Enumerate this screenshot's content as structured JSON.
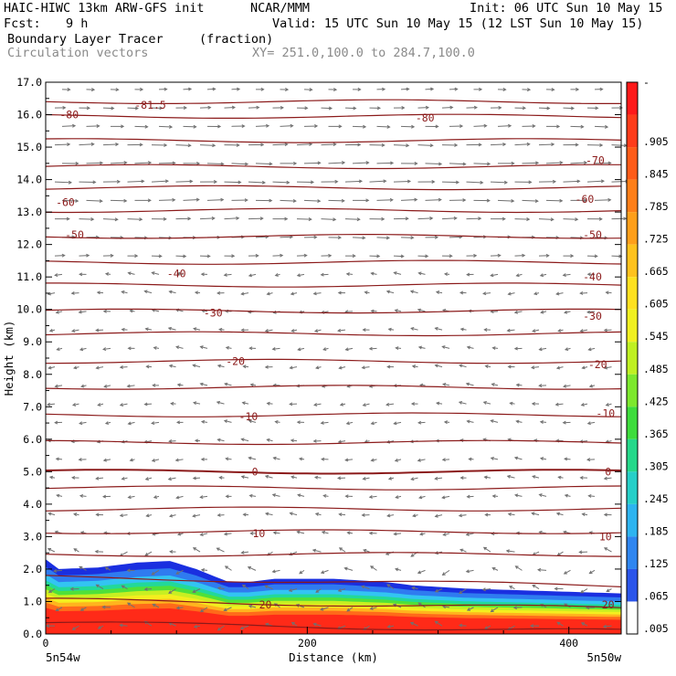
{
  "header": {
    "model": "HAIC-HIWC 13km ARW-GFS init",
    "center": "NCAR/MMM",
    "init": "Init: 06 UTC Sun 10 May 15",
    "fcst_label": "Fcst:",
    "fcst_value": "9 h",
    "valid": "Valid: 15 UTC Sun 10 May 15 (12 LST Sun 10 May 15)",
    "field": "Boundary Layer Tracer",
    "units": "(fraction)",
    "vectors": "Circulation vectors",
    "xy": "XY= 251.0,100.0 to 284.7,100.0"
  },
  "chart_data": {
    "type": "heatmap",
    "ylabel": "Height (km)",
    "xlabel": "Distance (km)",
    "xlim": [
      0,
      440
    ],
    "ylim": [
      0,
      17
    ],
    "yticks": [
      "0.0",
      "1.0",
      "2.0",
      "3.0",
      "4.0",
      "5.0",
      "6.0",
      "7.0",
      "8.0",
      "9.0",
      "10.0",
      "11.0",
      "12.0",
      "13.0",
      "14.0",
      "15.0",
      "16.0",
      "17.0"
    ],
    "xticks": [
      "0",
      "200",
      "400"
    ],
    "x_endpoints": [
      "5n54w",
      "5n50w"
    ],
    "colorbar": {
      "labels": [
        "-",
        ".905",
        ".845",
        ".785",
        ".725",
        ".665",
        ".605",
        ".545",
        ".485",
        ".425",
        ".365",
        ".305",
        ".245",
        ".185",
        ".125",
        ".065",
        ".005"
      ]
    },
    "temperature_contour_labels": [
      {
        "text": "-81.5",
        "x": 80,
        "y": 16.3
      },
      {
        "text": "-80",
        "x": 18,
        "y": 16.0
      },
      {
        "text": "-80",
        "x": 290,
        "y": 15.9
      },
      {
        "text": "-70",
        "x": 420,
        "y": 14.6
      },
      {
        "text": "-60",
        "x": 15,
        "y": 13.3
      },
      {
        "text": "-60",
        "x": 412,
        "y": 13.4
      },
      {
        "text": "-50",
        "x": 22,
        "y": 12.3
      },
      {
        "text": "-50",
        "x": 418,
        "y": 12.3
      },
      {
        "text": "-40",
        "x": 100,
        "y": 11.1
      },
      {
        "text": "-40",
        "x": 418,
        "y": 11.0
      },
      {
        "text": "-30",
        "x": 128,
        "y": 9.9
      },
      {
        "text": "-30",
        "x": 418,
        "y": 9.8
      },
      {
        "text": "-20",
        "x": 145,
        "y": 8.4
      },
      {
        "text": "-20",
        "x": 422,
        "y": 8.3
      },
      {
        "text": "-10",
        "x": 155,
        "y": 6.7
      },
      {
        "text": "-10",
        "x": 428,
        "y": 6.8
      },
      {
        "text": "0",
        "x": 160,
        "y": 5.0
      },
      {
        "text": "0",
        "x": 430,
        "y": 5.0
      },
      {
        "text": "10",
        "x": 163,
        "y": 3.1
      },
      {
        "text": "10",
        "x": 428,
        "y": 3.0
      },
      {
        "text": "20",
        "x": 168,
        "y": 0.9
      },
      {
        "text": "20",
        "x": 430,
        "y": 0.9
      }
    ],
    "contour_levels_km": [
      0.35,
      1.05,
      1.75,
      2.45,
      3.15,
      3.85,
      4.5,
      5.0,
      5.9,
      6.75,
      7.6,
      8.4,
      9.25,
      9.95,
      10.75,
      11.45,
      12.25,
      13.05,
      13.75,
      14.4,
      15.2,
      15.95,
      16.4
    ],
    "tracer_top_km": [
      [
        0,
        2.3
      ],
      [
        10,
        2.0
      ],
      [
        40,
        2.05
      ],
      [
        70,
        2.2
      ],
      [
        95,
        2.25
      ],
      [
        115,
        2.0
      ],
      [
        140,
        1.6
      ],
      [
        155,
        1.6
      ],
      [
        175,
        1.7
      ],
      [
        220,
        1.7
      ],
      [
        260,
        1.6
      ],
      [
        280,
        1.5
      ],
      [
        320,
        1.4
      ],
      [
        360,
        1.35
      ],
      [
        400,
        1.3
      ],
      [
        440,
        1.25
      ]
    ],
    "grid": false,
    "legend": "right"
  }
}
